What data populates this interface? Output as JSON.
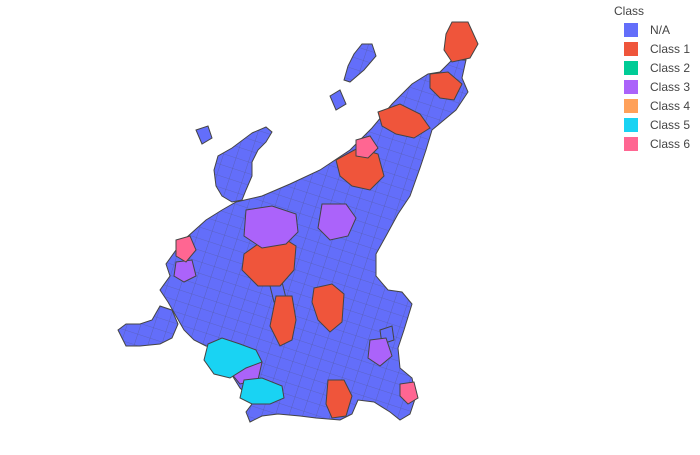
{
  "legend": {
    "title": "Class",
    "items": [
      {
        "label": "N/A",
        "color": "#636efa"
      },
      {
        "label": "Class 1",
        "color": "#ef553b"
      },
      {
        "label": "Class 2",
        "color": "#00cc96"
      },
      {
        "label": "Class 3",
        "color": "#ab63fa"
      },
      {
        "label": "Class 4",
        "color": "#ffa15a"
      },
      {
        "label": "Class 5",
        "color": "#19d3f3"
      },
      {
        "label": "Class 6",
        "color": "#ff6692"
      }
    ]
  },
  "map": {
    "border_color": "#444444",
    "regions": [
      {
        "class": "N/A"
      },
      {
        "class": "N/A"
      },
      {
        "class": "N/A"
      },
      {
        "class": "N/A"
      },
      {
        "class": "Class 1"
      },
      {
        "class": "Class 1"
      },
      {
        "class": "Class 1"
      },
      {
        "class": "Class 1"
      },
      {
        "class": "Class 1"
      },
      {
        "class": "Class 1"
      },
      {
        "class": "Class 1"
      },
      {
        "class": "Class 1"
      },
      {
        "class": "Class 3"
      },
      {
        "class": "Class 3"
      },
      {
        "class": "Class 3"
      },
      {
        "class": "Class 3"
      },
      {
        "class": "Class 3"
      },
      {
        "class": "Class 5"
      },
      {
        "class": "Class 5"
      },
      {
        "class": "Class 6"
      },
      {
        "class": "Class 6"
      },
      {
        "class": "Class 6"
      }
    ]
  }
}
